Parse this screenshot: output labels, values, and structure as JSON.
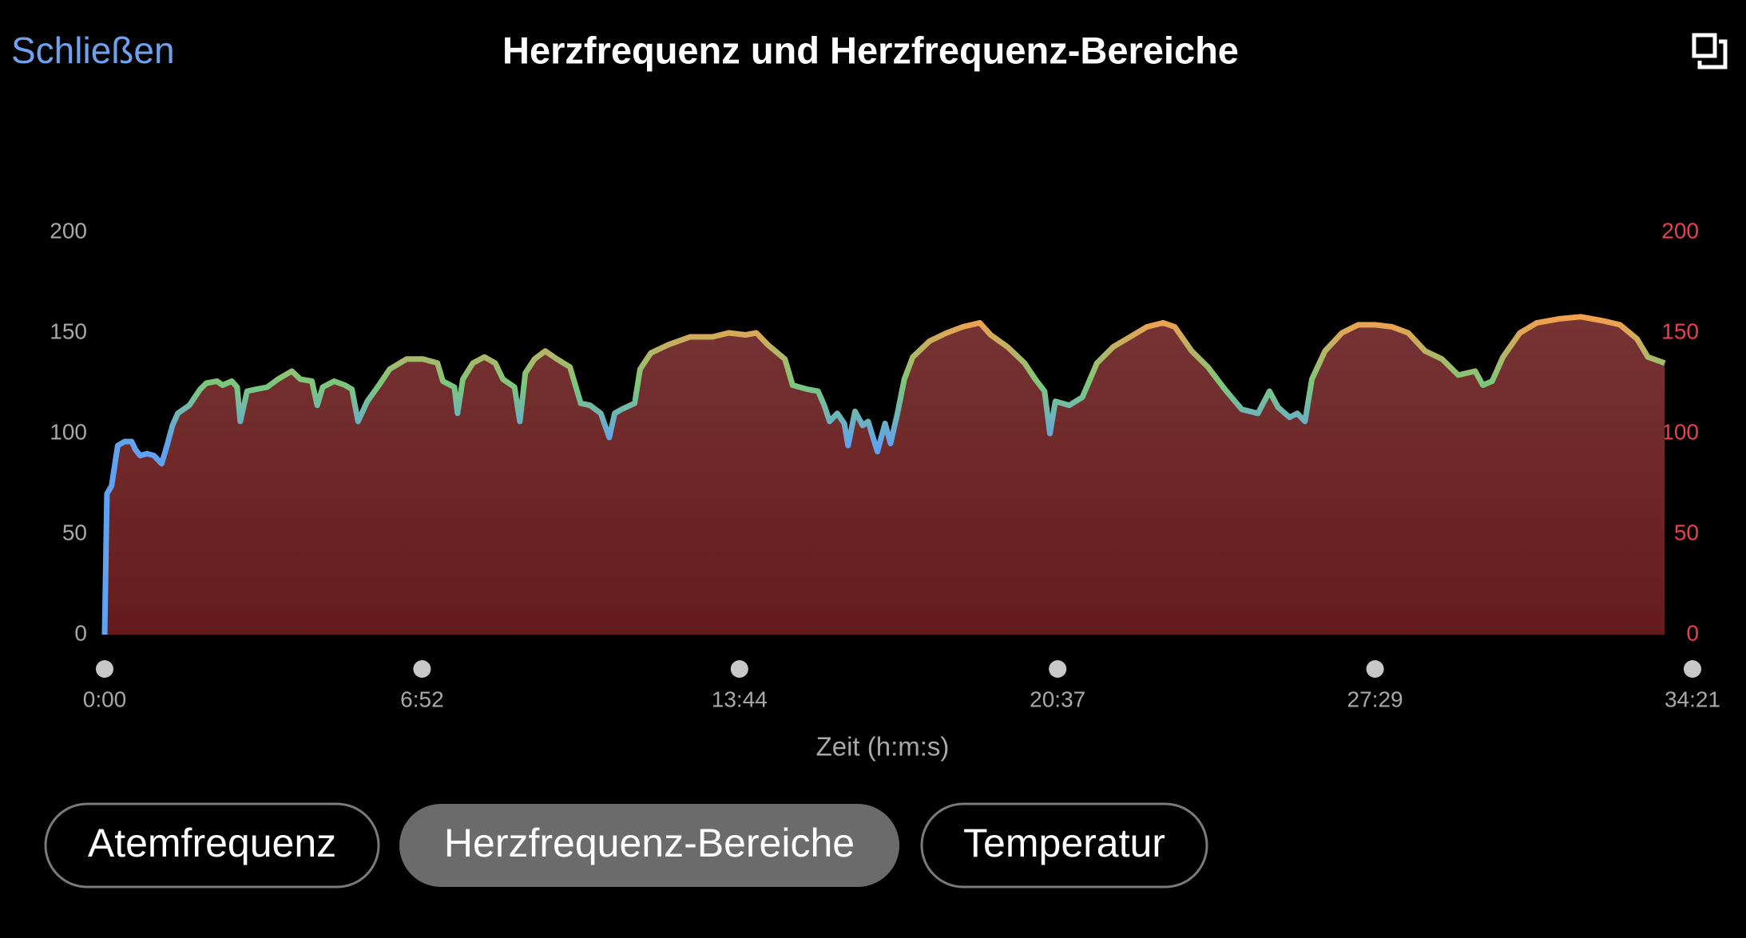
{
  "header": {
    "close": "Schließen",
    "title": "Herzfrequenz und Herzfrequenz-Bereiche"
  },
  "chart_data": {
    "type": "area",
    "xlabel": "Zeit (h:m:s)",
    "x": [
      0,
      3,
      9,
      17,
      26,
      35,
      40,
      46,
      55,
      64,
      74,
      81,
      88,
      95,
      110,
      124,
      132,
      146,
      153,
      165,
      172,
      176,
      185,
      197,
      211,
      225,
      243,
      254,
      269,
      276,
      283,
      298,
      312,
      321,
      329,
      341,
      356,
      370,
      392,
      413,
      432,
      439,
      454,
      458,
      465,
      478,
      493,
      507,
      517,
      532,
      539,
      546,
      558,
      572,
      587,
      604,
      618,
      630,
      644,
      655,
      662,
      671,
      688,
      695,
      709,
      731,
      760,
      789,
      810,
      832,
      846,
      861,
      883,
      893,
      912,
      926,
      934,
      941,
      951,
      960,
      965,
      974,
      984,
      991,
      1003,
      1013,
      1020,
      1029,
      1038,
      1049,
      1071,
      1093,
      1114,
      1136,
      1150,
      1172,
      1194,
      1208,
      1220,
      1227,
      1234,
      1252,
      1269,
      1288,
      1309,
      1331,
      1353,
      1374,
      1389,
      1411,
      1432,
      1454,
      1476,
      1497,
      1512,
      1523,
      1538,
      1548,
      1558,
      1567,
      1584,
      1606,
      1627,
      1649,
      1671,
      1692,
      1714,
      1736,
      1757,
      1779,
      1789,
      1801,
      1815,
      1837,
      1859,
      1888,
      1916,
      1945,
      1967,
      1989,
      2003,
      2025
    ],
    "series": [
      {
        "line_colors": [
          "#5fa2f2",
          "#7cc87a",
          "#f2a04e"
        ],
        "fill_colors": [
          "#7b3a3a",
          "#651b1b"
        ],
        "values": [
          0,
          70,
          74,
          94,
          96,
          96,
          92,
          89,
          90,
          89,
          85,
          94,
          104,
          110,
          114,
          122,
          125,
          126,
          124,
          126,
          123,
          106,
          121,
          122,
          123,
          127,
          131,
          127,
          126,
          114,
          123,
          126,
          124,
          122,
          106,
          116,
          124,
          132,
          137,
          137,
          135,
          126,
          123,
          110,
          127,
          135,
          138,
          135,
          127,
          123,
          106,
          130,
          137,
          141,
          137,
          133,
          115,
          114,
          110,
          98,
          110,
          112,
          115,
          132,
          140,
          144,
          148,
          148,
          150,
          149,
          150,
          144,
          137,
          124,
          122,
          121,
          114,
          106,
          110,
          105,
          94,
          111,
          104,
          106,
          91,
          105,
          95,
          110,
          127,
          138,
          146,
          150,
          153,
          155,
          149,
          143,
          135,
          127,
          121,
          100,
          116,
          114,
          118,
          135,
          143,
          148,
          153,
          155,
          153,
          141,
          133,
          122,
          112,
          110,
          121,
          113,
          108,
          110,
          106,
          127,
          141,
          150,
          154,
          154,
          153,
          150,
          141,
          137,
          129,
          131,
          124,
          126,
          138,
          150,
          155,
          157,
          158,
          156,
          154,
          147,
          138,
          135
        ]
      }
    ],
    "xlim": [
      0,
      2061
    ],
    "xticks": [
      {
        "value": 0,
        "label": "0:00"
      },
      {
        "value": 412,
        "label": "6:52"
      },
      {
        "value": 824,
        "label": "13:44"
      },
      {
        "value": 1237,
        "label": "20:37"
      },
      {
        "value": 1649,
        "label": "27:29"
      },
      {
        "value": 2061,
        "label": "34:21"
      }
    ],
    "ylim": [
      0,
      200
    ],
    "yticks": [
      0,
      50,
      100,
      150,
      200
    ],
    "y2lim": [
      0,
      200
    ],
    "y2ticks": [
      0,
      50,
      100,
      150,
      200
    ],
    "y2_color": "#e8414e"
  },
  "tabs": [
    {
      "label": "Atemfrequenz",
      "selected": false
    },
    {
      "label": "Herzfrequenz-Bereiche",
      "selected": true
    },
    {
      "label": "Temperatur",
      "selected": false
    }
  ]
}
